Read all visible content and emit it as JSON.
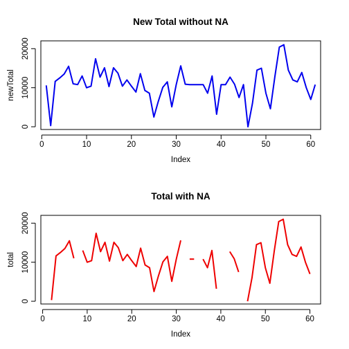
{
  "chart_data": [
    {
      "type": "line",
      "title": "New Total without NA",
      "xlabel": "Index",
      "ylabel": "newTotal",
      "xlim": [
        -0.2,
        62.2
      ],
      "ylim": [
        -700,
        22000
      ],
      "xticks": [
        0,
        10,
        20,
        30,
        40,
        50,
        60
      ],
      "yticks": [
        0,
        10000,
        20000
      ],
      "color": "#0000ee",
      "series": [
        {
          "x": [
            1,
            2,
            3,
            4,
            5,
            6,
            7,
            8,
            9,
            10,
            11,
            12,
            13,
            14,
            15,
            16,
            17,
            18,
            19,
            20,
            21,
            22,
            23,
            24,
            25,
            26,
            27,
            28,
            29,
            30,
            31,
            32,
            33,
            34,
            35,
            36,
            37,
            38,
            39,
            40,
            41,
            42,
            43,
            44,
            45,
            46,
            47,
            48,
            49,
            50,
            51,
            52,
            53,
            54,
            55,
            56,
            57,
            58,
            59,
            60,
            61
          ],
          "values": [
            10600,
            300,
            11600,
            12500,
            13500,
            15500,
            11000,
            10800,
            13000,
            10000,
            10400,
            17400,
            12700,
            15100,
            10300,
            15100,
            13700,
            10400,
            12000,
            10400,
            8900,
            13600,
            9300,
            8600,
            2500,
            6500,
            10100,
            11500,
            5100,
            10800,
            15600,
            10900,
            10800,
            10800,
            10800,
            10800,
            8600,
            13000,
            3200,
            10800,
            10800,
            12700,
            10900,
            7500,
            10800,
            0,
            6000,
            14500,
            15000,
            8600,
            4600,
            12900,
            20400,
            21000,
            14500,
            12000,
            11500,
            13900,
            10000,
            7000,
            10800
          ]
        }
      ]
    },
    {
      "type": "line",
      "title": "Total with NA",
      "xlabel": "Index",
      "ylabel": "total",
      "xlim": [
        -0.4,
        62.4
      ],
      "ylim": [
        -700,
        22000
      ],
      "xticks": [
        0,
        10,
        20,
        30,
        40,
        50,
        60
      ],
      "yticks": [
        0,
        10000,
        20000
      ],
      "color": "#ee0000",
      "series": [
        {
          "x": [
            1,
            2,
            3,
            4,
            5,
            6,
            7,
            8,
            9,
            10,
            11,
            12,
            13,
            14,
            15,
            16,
            17,
            18,
            19,
            20,
            21,
            22,
            23,
            24,
            25,
            26,
            27,
            28,
            29,
            30,
            31,
            32,
            33,
            34,
            35,
            36,
            37,
            38,
            39,
            40,
            41,
            42,
            43,
            44,
            45,
            46,
            47,
            48,
            49,
            50,
            51,
            52,
            53,
            54,
            55,
            56,
            57,
            58,
            59,
            60,
            61,
            62
          ],
          "values": [
            null,
            300,
            11600,
            12500,
            13500,
            15500,
            11000,
            null,
            13000,
            10000,
            10400,
            17400,
            12700,
            15100,
            10300,
            15100,
            13700,
            10400,
            12000,
            10400,
            8900,
            13600,
            9300,
            8600,
            2500,
            6500,
            10100,
            11500,
            5100,
            10800,
            15600,
            null,
            10800,
            10800,
            null,
            10800,
            8600,
            13000,
            3200,
            null,
            null,
            12700,
            10900,
            7500,
            null,
            0,
            6000,
            14500,
            15000,
            8600,
            4600,
            12900,
            20400,
            21000,
            14500,
            12000,
            11500,
            13900,
            10000,
            7000,
            null,
            null
          ]
        }
      ]
    }
  ]
}
